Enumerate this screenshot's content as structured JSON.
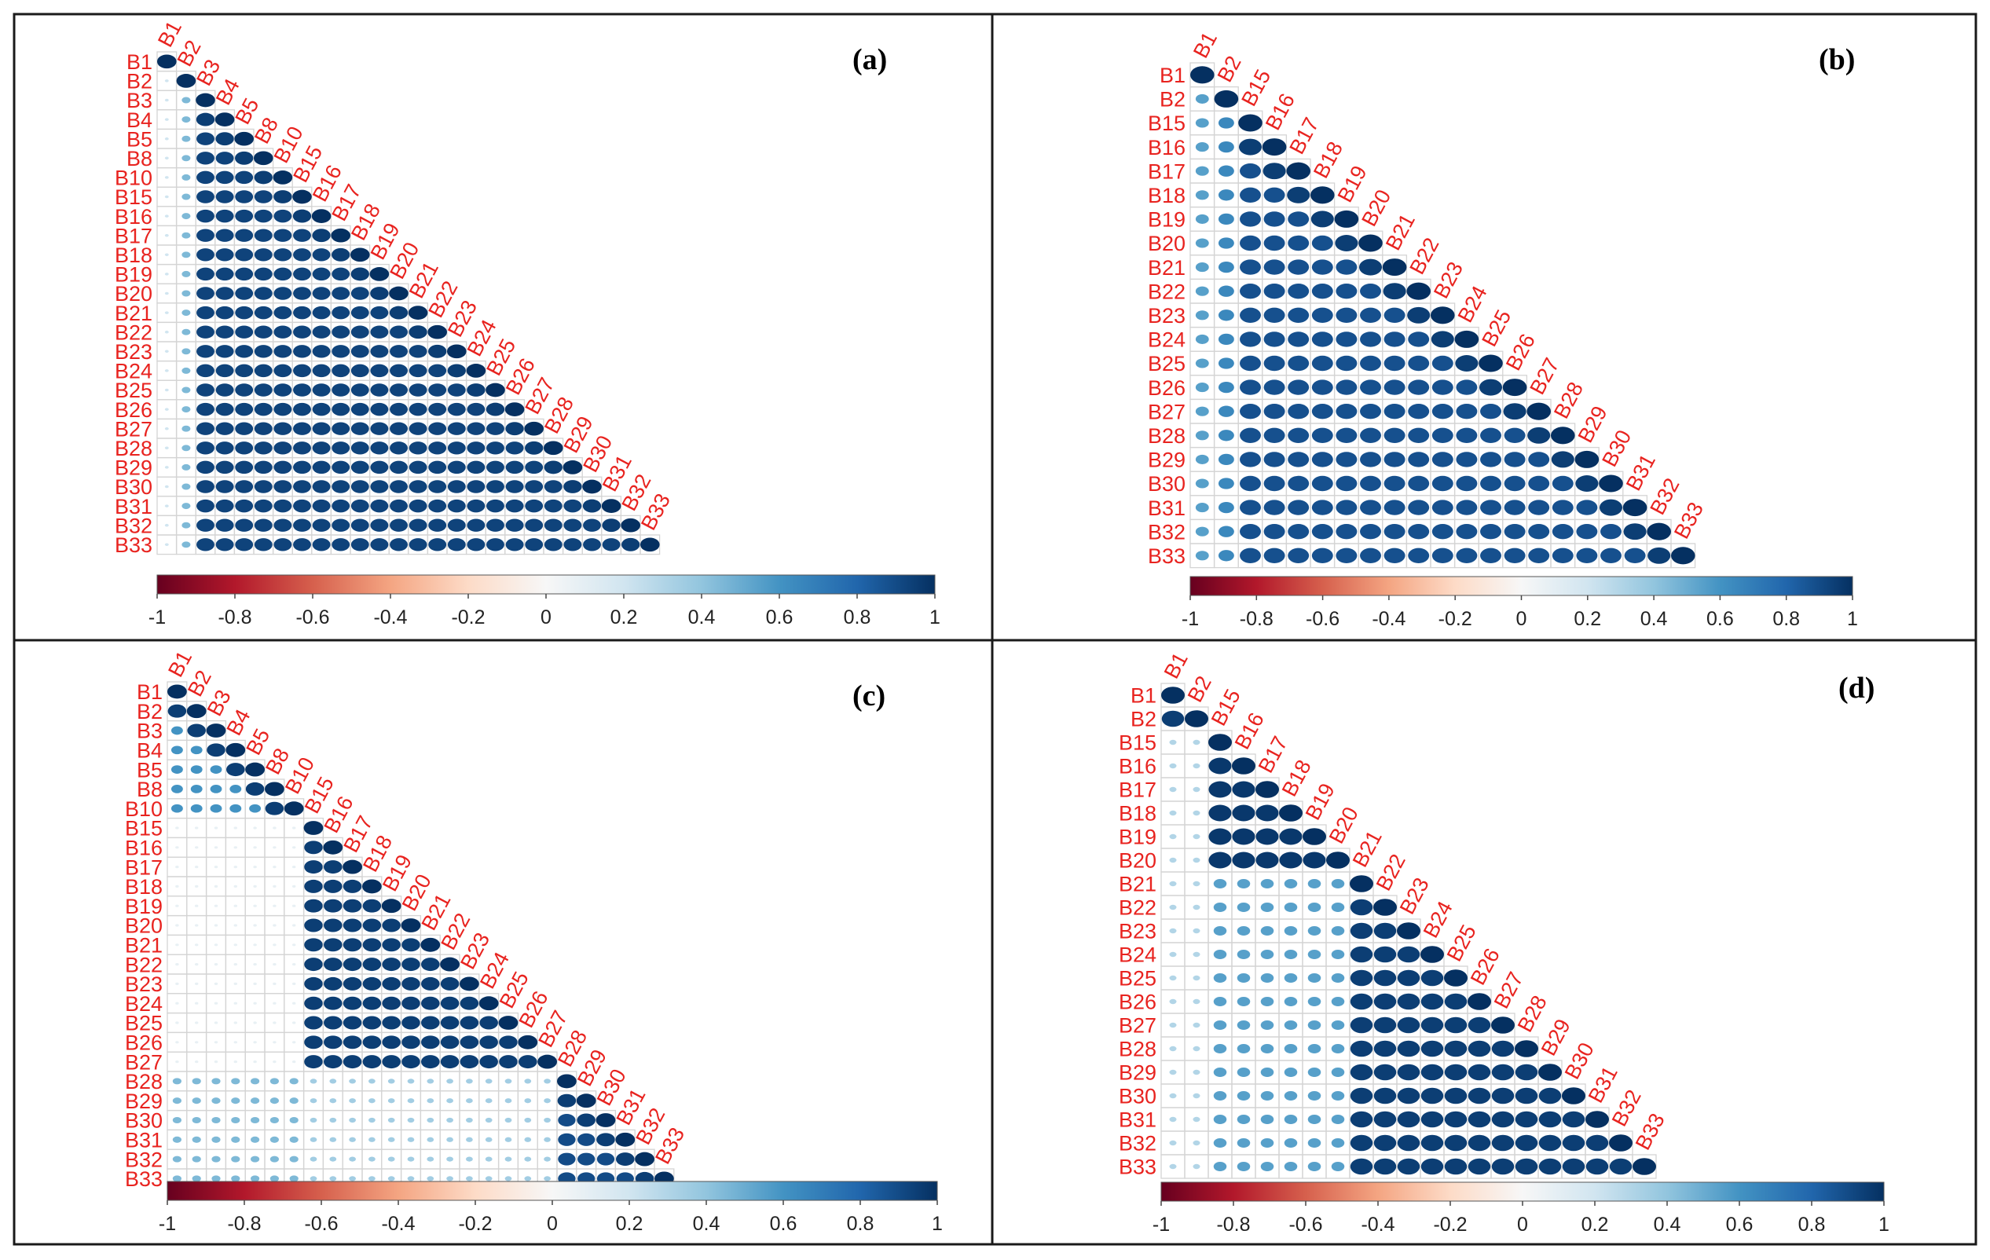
{
  "figure": {
    "colormap": [
      "#67001f",
      "#b2182b",
      "#d6604d",
      "#f4a582",
      "#fddbc7",
      "#f7f7f7",
      "#d1e5f0",
      "#92c5de",
      "#4393c3",
      "#2166ac",
      "#053061"
    ],
    "label_color": "#e8231f"
  },
  "chart_data": [
    {
      "type": "correlation-matrix-lower",
      "title": "(a)",
      "variables": [
        "B1",
        "B2",
        "B3",
        "B4",
        "B5",
        "B8",
        "B10",
        "B15",
        "B16",
        "B17",
        "B18",
        "B19",
        "B20",
        "B21",
        "B22",
        "B23",
        "B24",
        "B25",
        "B26",
        "B27",
        "B28",
        "B29",
        "B30",
        "B31",
        "B32",
        "B33"
      ],
      "group_boundaries": [],
      "within_group_corr": [
        0.93
      ],
      "cross_group_corr": [],
      "column_corr": {
        "B1": 0.2,
        "B2": 0.45
      },
      "near_diagonal_corr": 0.95,
      "colorbar": {
        "ticks": [
          "-1",
          "-0.8",
          "-0.6",
          "-0.4",
          "-0.2",
          "0",
          "0.2",
          "0.4",
          "0.6",
          "0.8",
          "1"
        ],
        "range": [
          -1,
          1
        ]
      }
    },
    {
      "type": "correlation-matrix-lower",
      "title": "(b)",
      "variables": [
        "B1",
        "B2",
        "B15",
        "B16",
        "B17",
        "B18",
        "B19",
        "B20",
        "B21",
        "B22",
        "B23",
        "B24",
        "B25",
        "B26",
        "B27",
        "B28",
        "B29",
        "B30",
        "B31",
        "B32",
        "B33"
      ],
      "group_boundaries": [],
      "within_group_corr": [
        0.88
      ],
      "cross_group_corr": [],
      "column_corr": {
        "B1": 0.55,
        "B2": 0.65
      },
      "near_diagonal_corr": 0.95,
      "colorbar": {
        "ticks": [
          "-1",
          "-0.8",
          "-0.6",
          "-0.4",
          "-0.2",
          "0",
          "0.2",
          "0.4",
          "0.6",
          "0.8",
          "1"
        ],
        "range": [
          -1,
          1
        ]
      }
    },
    {
      "type": "correlation-matrix-lower",
      "title": "(c)",
      "variables": [
        "B1",
        "B2",
        "B3",
        "B4",
        "B5",
        "B8",
        "B10",
        "B15",
        "B16",
        "B17",
        "B18",
        "B19",
        "B20",
        "B21",
        "B22",
        "B23",
        "B24",
        "B25",
        "B26",
        "B27",
        "B28",
        "B29",
        "B30",
        "B31",
        "B32",
        "B33"
      ],
      "group_boundaries": [
        7,
        20
      ],
      "within_group_corr": [
        0.6,
        0.95,
        0.9
      ],
      "cross_group_corr": [
        [
          1,
          0,
          0.08
        ],
        [
          2,
          0,
          0.45
        ],
        [
          2,
          1,
          0.35
        ]
      ],
      "column_corr": {},
      "near_diagonal_corr": 0.95,
      "colorbar": {
        "ticks": [
          "-1",
          "-0.8",
          "-0.6",
          "-0.4",
          "-0.2",
          "0",
          "0.2",
          "0.4",
          "0.6",
          "0.8",
          "1"
        ],
        "range": [
          -1,
          1
        ]
      }
    },
    {
      "type": "correlation-matrix-lower",
      "title": "(d)",
      "variables": [
        "B1",
        "B2",
        "B15",
        "B16",
        "B17",
        "B18",
        "B19",
        "B20",
        "B21",
        "B22",
        "B23",
        "B24",
        "B25",
        "B26",
        "B27",
        "B28",
        "B29",
        "B30",
        "B31",
        "B32",
        "B33"
      ],
      "group_boundaries": [
        2,
        8
      ],
      "within_group_corr": [
        0.95,
        0.97,
        0.95
      ],
      "cross_group_corr": [
        [
          1,
          0,
          0.3
        ],
        [
          2,
          0,
          0.3
        ],
        [
          2,
          1,
          0.55
        ]
      ],
      "column_corr": {},
      "near_diagonal_corr": 0.95,
      "colorbar": {
        "ticks": [
          "-1",
          "-0.8",
          "-0.6",
          "-0.4",
          "-0.2",
          "0",
          "0.2",
          "0.4",
          "0.6",
          "0.8",
          "1"
        ],
        "range": [
          -1,
          1
        ]
      }
    }
  ]
}
